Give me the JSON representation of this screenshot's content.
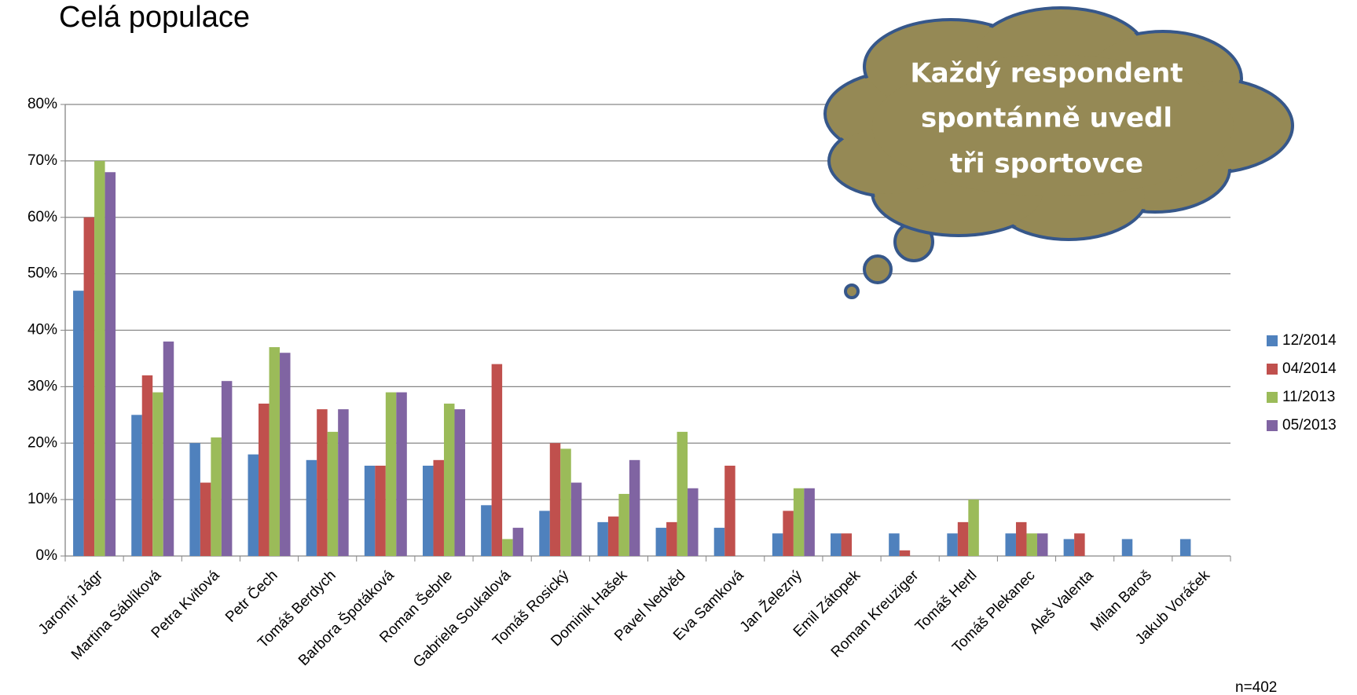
{
  "chart_data": {
    "type": "bar",
    "title": "Celá populace",
    "categories": [
      "Jaromír Jágr",
      "Martina Sáblíková",
      "Petra Kvitová",
      "Petr Čech",
      "Tomáš Berdych",
      "Barbora Špotáková",
      "Roman Šebrle",
      "Gabriela Soukalová",
      "Tomáš Rosický",
      "Dominik Hašek",
      "Pavel Nedvěd",
      "Eva Samková",
      "Jan Železný",
      "Emil Zátopek",
      "Roman Kreuziger",
      "Tomáš Hertl",
      "Tomáš Plekanec",
      "Aleš Valenta",
      "Milan Baroš",
      "Jakub Voráček"
    ],
    "series": [
      {
        "name": "12/2014",
        "color": "#4f81bd",
        "values": [
          47,
          25,
          20,
          18,
          17,
          16,
          16,
          9,
          8,
          6,
          5,
          5,
          4,
          4,
          4,
          4,
          4,
          3,
          3,
          3
        ]
      },
      {
        "name": "04/2014",
        "color": "#c0504d",
        "values": [
          60,
          32,
          13,
          27,
          26,
          16,
          17,
          34,
          20,
          7,
          6,
          16,
          8,
          4,
          1,
          6,
          6,
          4,
          null,
          null
        ]
      },
      {
        "name": "11/2013",
        "color": "#9bbb59",
        "values": [
          70,
          29,
          21,
          37,
          22,
          29,
          27,
          3,
          19,
          11,
          22,
          null,
          12,
          null,
          null,
          10,
          4,
          null,
          null,
          null
        ]
      },
      {
        "name": "05/2013",
        "color": "#8064a2",
        "values": [
          68,
          38,
          31,
          36,
          26,
          29,
          26,
          5,
          13,
          17,
          12,
          null,
          12,
          null,
          null,
          null,
          4,
          null,
          null,
          null
        ]
      }
    ],
    "ylim": [
      0,
      80
    ],
    "yticks": [
      {
        "value": 0,
        "label": "0%"
      },
      {
        "value": 10,
        "label": "10%"
      },
      {
        "value": 20,
        "label": "20%"
      },
      {
        "value": 30,
        "label": "30%"
      },
      {
        "value": 40,
        "label": "40%"
      },
      {
        "value": 50,
        "label": "50%"
      },
      {
        "value": 60,
        "label": "60%"
      },
      {
        "value": 70,
        "label": "70%"
      },
      {
        "value": 80,
        "label": "80%"
      }
    ],
    "grid": true,
    "legend": "right",
    "annotations": [
      "Každý respondent",
      "spontánně uvedl",
      "tři sportovce"
    ],
    "note": "n=402"
  }
}
